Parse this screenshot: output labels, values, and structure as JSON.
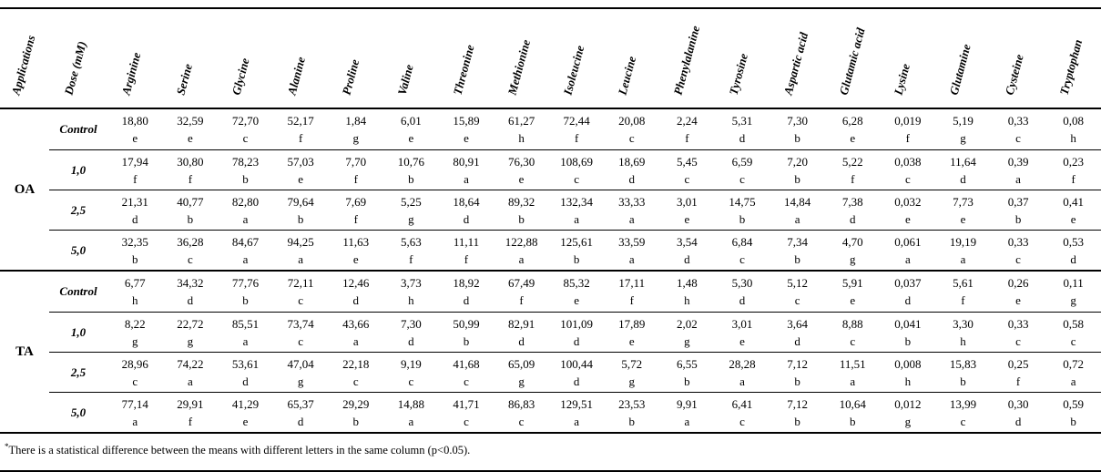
{
  "table": {
    "header": {
      "applications": "Applications",
      "dose": "Dose (mM)",
      "amino_acids": [
        "Arginine",
        "Serine",
        "Glycine",
        "Alanine",
        "Proline",
        "Valine",
        "Threonine",
        "Methionine",
        "Isoleucine",
        "Leucine",
        "Phenylalanine",
        "Tyrosine",
        "Aspartic acid",
        "Glutamic acid",
        "Lysine",
        "Glutamine",
        "Cysteine",
        "Tryptophan"
      ]
    },
    "groups": [
      {
        "application": "OA",
        "rows": [
          {
            "dose": "Control",
            "cells": [
              {
                "v": "18,80",
                "l": "e"
              },
              {
                "v": "32,59",
                "l": "e"
              },
              {
                "v": "72,70",
                "l": "c"
              },
              {
                "v": "52,17",
                "l": "f"
              },
              {
                "v": "1,84",
                "l": "g"
              },
              {
                "v": "6,01",
                "l": "e"
              },
              {
                "v": "15,89",
                "l": "e"
              },
              {
                "v": "61,27",
                "l": "h"
              },
              {
                "v": "72,44",
                "l": "f"
              },
              {
                "v": "20,08",
                "l": "c"
              },
              {
                "v": "2,24",
                "l": "f"
              },
              {
                "v": "5,31",
                "l": "d"
              },
              {
                "v": "7,30",
                "l": "b"
              },
              {
                "v": "6,28",
                "l": "e"
              },
              {
                "v": "0,019",
                "l": "f"
              },
              {
                "v": "5,19",
                "l": "g"
              },
              {
                "v": "0,33",
                "l": "c"
              },
              {
                "v": "0,08",
                "l": "h"
              }
            ]
          },
          {
            "dose": "1,0",
            "cells": [
              {
                "v": "17,94",
                "l": "f"
              },
              {
                "v": "30,80",
                "l": "f"
              },
              {
                "v": "78,23",
                "l": "b"
              },
              {
                "v": "57,03",
                "l": "e"
              },
              {
                "v": "7,70",
                "l": "f"
              },
              {
                "v": "10,76",
                "l": "b"
              },
              {
                "v": "80,91",
                "l": "a"
              },
              {
                "v": "76,30",
                "l": "e"
              },
              {
                "v": "108,69",
                "l": "c"
              },
              {
                "v": "18,69",
                "l": "d"
              },
              {
                "v": "5,45",
                "l": "c"
              },
              {
                "v": "6,59",
                "l": "c"
              },
              {
                "v": "7,20",
                "l": "b"
              },
              {
                "v": "5,22",
                "l": "f"
              },
              {
                "v": "0,038",
                "l": "c"
              },
              {
                "v": "11,64",
                "l": "d"
              },
              {
                "v": "0,39",
                "l": "a"
              },
              {
                "v": "0,23",
                "l": "f"
              }
            ]
          },
          {
            "dose": "2,5",
            "cells": [
              {
                "v": "21,31",
                "l": "d"
              },
              {
                "v": "40,77",
                "l": "b"
              },
              {
                "v": "82,80",
                "l": "a"
              },
              {
                "v": "79,64",
                "l": "b"
              },
              {
                "v": "7,69",
                "l": "f"
              },
              {
                "v": "5,25",
                "l": "g"
              },
              {
                "v": "18,64",
                "l": "d"
              },
              {
                "v": "89,32",
                "l": "b"
              },
              {
                "v": "132,34",
                "l": "a"
              },
              {
                "v": "33,33",
                "l": "a"
              },
              {
                "v": "3,01",
                "l": "e"
              },
              {
                "v": "14,75",
                "l": "b"
              },
              {
                "v": "14,84",
                "l": "a"
              },
              {
                "v": "7,38",
                "l": "d"
              },
              {
                "v": "0,032",
                "l": "e"
              },
              {
                "v": "7,73",
                "l": "e"
              },
              {
                "v": "0,37",
                "l": "b"
              },
              {
                "v": "0,41",
                "l": "e"
              }
            ]
          },
          {
            "dose": "5,0",
            "cells": [
              {
                "v": "32,35",
                "l": "b"
              },
              {
                "v": "36,28",
                "l": "c"
              },
              {
                "v": "84,67",
                "l": "a"
              },
              {
                "v": "94,25",
                "l": "a"
              },
              {
                "v": "11,63",
                "l": "e"
              },
              {
                "v": "5,63",
                "l": "f"
              },
              {
                "v": "11,11",
                "l": "f"
              },
              {
                "v": "122,88",
                "l": "a"
              },
              {
                "v": "125,61",
                "l": "b"
              },
              {
                "v": "33,59",
                "l": "a"
              },
              {
                "v": "3,54",
                "l": "d"
              },
              {
                "v": "6,84",
                "l": "c"
              },
              {
                "v": "7,34",
                "l": "b"
              },
              {
                "v": "4,70",
                "l": "g"
              },
              {
                "v": "0,061",
                "l": "a"
              },
              {
                "v": "19,19",
                "l": "a"
              },
              {
                "v": "0,33",
                "l": "c"
              },
              {
                "v": "0,53",
                "l": "d"
              }
            ]
          }
        ]
      },
      {
        "application": "TA",
        "rows": [
          {
            "dose": "Control",
            "cells": [
              {
                "v": "6,77",
                "l": "h"
              },
              {
                "v": "34,32",
                "l": "d"
              },
              {
                "v": "77,76",
                "l": "b"
              },
              {
                "v": "72,11",
                "l": "c"
              },
              {
                "v": "12,46",
                "l": "d"
              },
              {
                "v": "3,73",
                "l": "h"
              },
              {
                "v": "18,92",
                "l": "d"
              },
              {
                "v": "67,49",
                "l": "f"
              },
              {
                "v": "85,32",
                "l": "e"
              },
              {
                "v": "17,11",
                "l": "f"
              },
              {
                "v": "1,48",
                "l": "h"
              },
              {
                "v": "5,30",
                "l": "d"
              },
              {
                "v": "5,12",
                "l": "c"
              },
              {
                "v": "5,91",
                "l": "e"
              },
              {
                "v": "0,037",
                "l": "d"
              },
              {
                "v": "5,61",
                "l": "f"
              },
              {
                "v": "0,26",
                "l": "e"
              },
              {
                "v": "0,11",
                "l": "g"
              }
            ]
          },
          {
            "dose": "1,0",
            "cells": [
              {
                "v": "8,22",
                "l": "g"
              },
              {
                "v": "22,72",
                "l": "g"
              },
              {
                "v": "85,51",
                "l": "a"
              },
              {
                "v": "73,74",
                "l": "c"
              },
              {
                "v": "43,66",
                "l": "a"
              },
              {
                "v": "7,30",
                "l": "d"
              },
              {
                "v": "50,99",
                "l": "b"
              },
              {
                "v": "82,91",
                "l": "d"
              },
              {
                "v": "101,09",
                "l": "d"
              },
              {
                "v": "17,89",
                "l": "e"
              },
              {
                "v": "2,02",
                "l": "g"
              },
              {
                "v": "3,01",
                "l": "e"
              },
              {
                "v": "3,64",
                "l": "d"
              },
              {
                "v": "8,88",
                "l": "c"
              },
              {
                "v": "0,041",
                "l": "b"
              },
              {
                "v": "3,30",
                "l": "h"
              },
              {
                "v": "0,33",
                "l": "c"
              },
              {
                "v": "0,58",
                "l": "c"
              }
            ]
          },
          {
            "dose": "2,5",
            "cells": [
              {
                "v": "28,96",
                "l": "c"
              },
              {
                "v": "74,22",
                "l": "a"
              },
              {
                "v": "53,61",
                "l": "d"
              },
              {
                "v": "47,04",
                "l": "g"
              },
              {
                "v": "22,18",
                "l": "c"
              },
              {
                "v": "9,19",
                "l": "c"
              },
              {
                "v": "41,68",
                "l": "c"
              },
              {
                "v": "65,09",
                "l": "g"
              },
              {
                "v": "100,44",
                "l": "d"
              },
              {
                "v": "5,72",
                "l": "g"
              },
              {
                "v": "6,55",
                "l": "b"
              },
              {
                "v": "28,28",
                "l": "a"
              },
              {
                "v": "7,12",
                "l": "b"
              },
              {
                "v": "11,51",
                "l": "a"
              },
              {
                "v": "0,008",
                "l": "h"
              },
              {
                "v": "15,83",
                "l": "b"
              },
              {
                "v": "0,25",
                "l": "f"
              },
              {
                "v": "0,72",
                "l": "a"
              }
            ]
          },
          {
            "dose": "5,0",
            "cells": [
              {
                "v": "77,14",
                "l": "a"
              },
              {
                "v": "29,91",
                "l": "f"
              },
              {
                "v": "41,29",
                "l": "e"
              },
              {
                "v": "65,37",
                "l": "d"
              },
              {
                "v": "29,29",
                "l": "b"
              },
              {
                "v": "14,88",
                "l": "a"
              },
              {
                "v": "41,71",
                "l": "c"
              },
              {
                "v": "86,83",
                "l": "c"
              },
              {
                "v": "129,51",
                "l": "a"
              },
              {
                "v": "23,53",
                "l": "b"
              },
              {
                "v": "9,91",
                "l": "a"
              },
              {
                "v": "6,41",
                "l": "c"
              },
              {
                "v": "7,12",
                "l": "b"
              },
              {
                "v": "10,64",
                "l": "b"
              },
              {
                "v": "0,012",
                "l": "g"
              },
              {
                "v": "13,99",
                "l": "c"
              },
              {
                "v": "0,30",
                "l": "d"
              },
              {
                "v": "0,59",
                "l": "b"
              }
            ]
          }
        ]
      }
    ],
    "footnote_marker": "*",
    "footnote_text": "There is a statistical difference between the means with different letters in the same column (p<0.05)."
  }
}
